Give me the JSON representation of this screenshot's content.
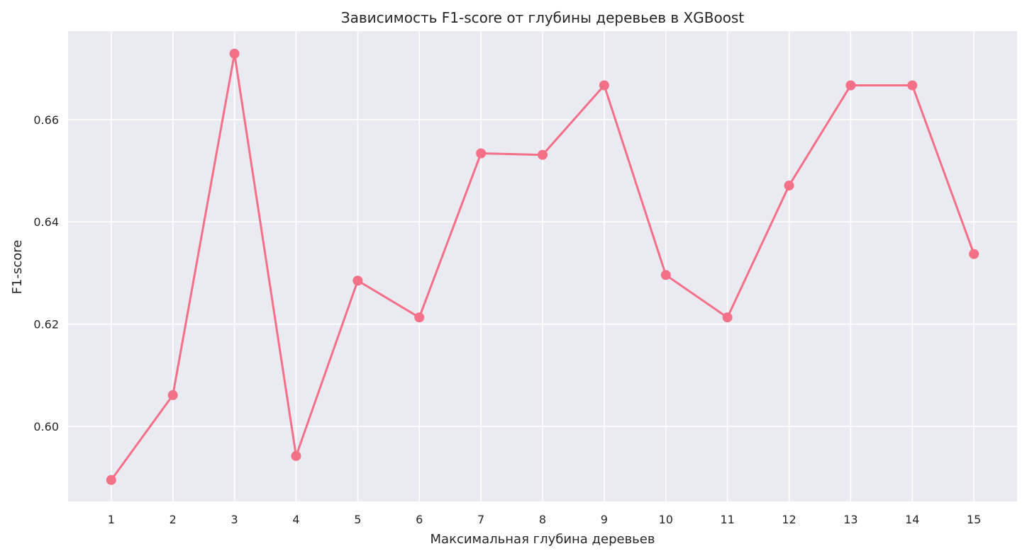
{
  "chart_data": {
    "type": "line",
    "title": "Зависимость F1-score от глубины деревьев в XGBoost",
    "xlabel": "Максимальная глубина деревьев",
    "ylabel": "F1-score",
    "x": [
      1,
      2,
      3,
      4,
      5,
      6,
      7,
      8,
      9,
      10,
      11,
      12,
      13,
      14,
      15
    ],
    "series": [
      {
        "values": [
          0.5895,
          0.6061,
          0.6729,
          0.5942,
          0.6285,
          0.6213,
          0.6534,
          0.6531,
          0.6667,
          0.6296,
          0.6213,
          0.6471,
          0.6667,
          0.6667,
          0.6337
        ]
      }
    ],
    "x_ticks": [
      "1",
      "2",
      "3",
      "4",
      "5",
      "6",
      "7",
      "8",
      "9",
      "10",
      "11",
      "12",
      "13",
      "14",
      "15"
    ],
    "y_ticks": [
      "0.60",
      "0.62",
      "0.64",
      "0.66"
    ],
    "y_tick_values": [
      0.6,
      0.62,
      0.64,
      0.66
    ],
    "xlim": [
      0.3,
      15.7
    ],
    "ylim": [
      0.5853,
      0.6773
    ],
    "grid": true,
    "colors": {
      "line": "#f37086",
      "plot_background": "#eaeaf2",
      "grid": "#ffffff"
    }
  }
}
